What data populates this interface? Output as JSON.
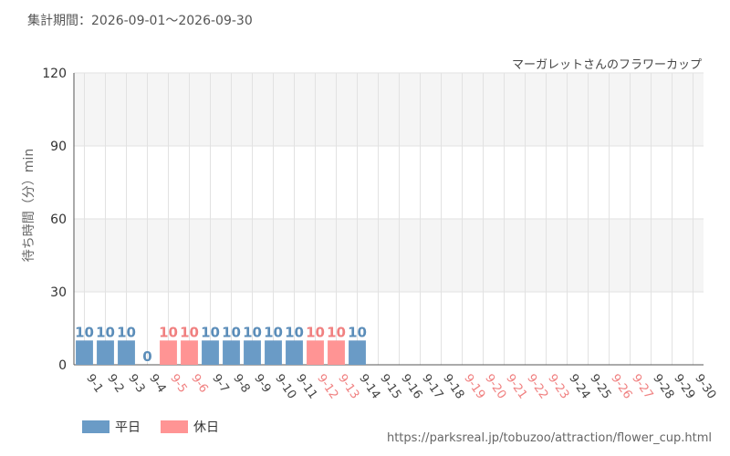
{
  "header": {
    "period": "集計期間：2026-09-01～2026-09-30"
  },
  "chart_data": {
    "type": "bar",
    "title": "マーガレットさんのフラワーカップ",
    "xlabel": "",
    "ylabel": "待ち時間（分）min",
    "ylim": [
      0,
      120
    ],
    "yticks": [
      0,
      30,
      60,
      90,
      120
    ],
    "grid": true,
    "legend_position": "bottom-left",
    "categories": [
      "9-1",
      "9-2",
      "9-3",
      "9-4",
      "9-5",
      "9-6",
      "9-7",
      "9-8",
      "9-9",
      "9-10",
      "9-11",
      "9-12",
      "9-13",
      "9-14",
      "9-15",
      "9-16",
      "9-17",
      "9-18",
      "9-19",
      "9-20",
      "9-21",
      "9-22",
      "9-23",
      "9-24",
      "9-25",
      "9-26",
      "9-27",
      "9-28",
      "9-29",
      "9-30"
    ],
    "values": [
      10,
      10,
      10,
      0,
      10,
      10,
      10,
      10,
      10,
      10,
      10,
      10,
      10,
      10,
      null,
      null,
      null,
      null,
      null,
      null,
      null,
      null,
      null,
      null,
      null,
      null,
      null,
      null,
      null,
      null
    ],
    "day_type": [
      "weekday",
      "weekday",
      "weekday",
      "weekday",
      "holiday",
      "holiday",
      "weekday",
      "weekday",
      "weekday",
      "weekday",
      "weekday",
      "holiday",
      "holiday",
      "weekday",
      "weekday",
      "weekday",
      "weekday",
      "weekday",
      "holiday",
      "holiday",
      "holiday",
      "holiday",
      "holiday",
      "weekday",
      "weekday",
      "holiday",
      "holiday",
      "weekday",
      "weekday",
      "weekday"
    ],
    "series": [
      {
        "name": "平日",
        "color": "#6a9bc6",
        "label_color": "#5b8db9"
      },
      {
        "name": "休日",
        "color": "#ff9494",
        "label_color": "#f08080"
      }
    ],
    "axis_label_colors": {
      "weekday": "#444444",
      "holiday": "#f08080"
    },
    "band_color": "#f5f5f5",
    "grid_color": "#e2e2e2"
  },
  "footer": {
    "url": "https://parksreal.jp/tobuzoo/attraction/flower_cup.html"
  }
}
